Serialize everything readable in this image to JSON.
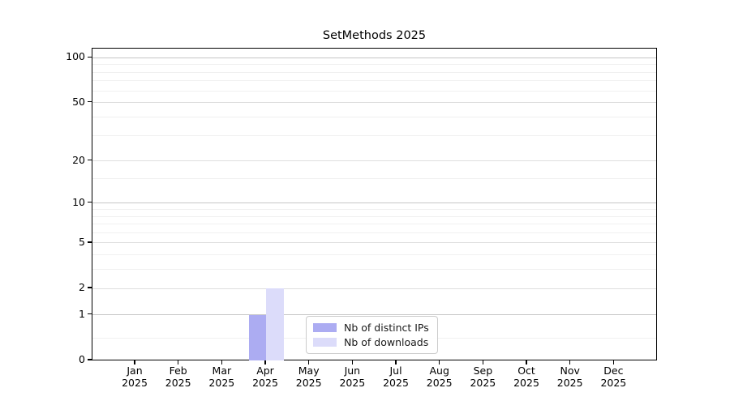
{
  "title": "SetMethods 2025",
  "chart_data": {
    "type": "bar",
    "title": "SetMethods 2025",
    "categories": [
      "Jan",
      "Feb",
      "Mar",
      "Apr",
      "May",
      "Jun",
      "Jul",
      "Aug",
      "Sep",
      "Oct",
      "Nov",
      "Dec"
    ],
    "category_year": "2025",
    "series": [
      {
        "name": "Nb of distinct IPs",
        "color": "#acacf2",
        "values": [
          0,
          0,
          0,
          1,
          0,
          0,
          0,
          0,
          0,
          0,
          0,
          0
        ]
      },
      {
        "name": "Nb of downloads",
        "color": "#dcdcfa",
        "values": [
          0,
          0,
          0,
          2,
          0,
          0,
          0,
          0,
          0,
          0,
          0,
          0
        ]
      }
    ],
    "xlabel": "",
    "ylabel": "",
    "y_scale": "log1p",
    "ylim": [
      0,
      115
    ],
    "y_ticks": [
      0,
      1,
      2,
      5,
      10,
      20,
      50,
      100
    ],
    "y_minor_ticks": [
      0.4,
      3,
      4,
      6,
      7,
      8,
      9,
      15,
      30,
      40,
      60,
      70,
      80,
      90
    ],
    "grid": "on",
    "legend_position": "lower center"
  }
}
